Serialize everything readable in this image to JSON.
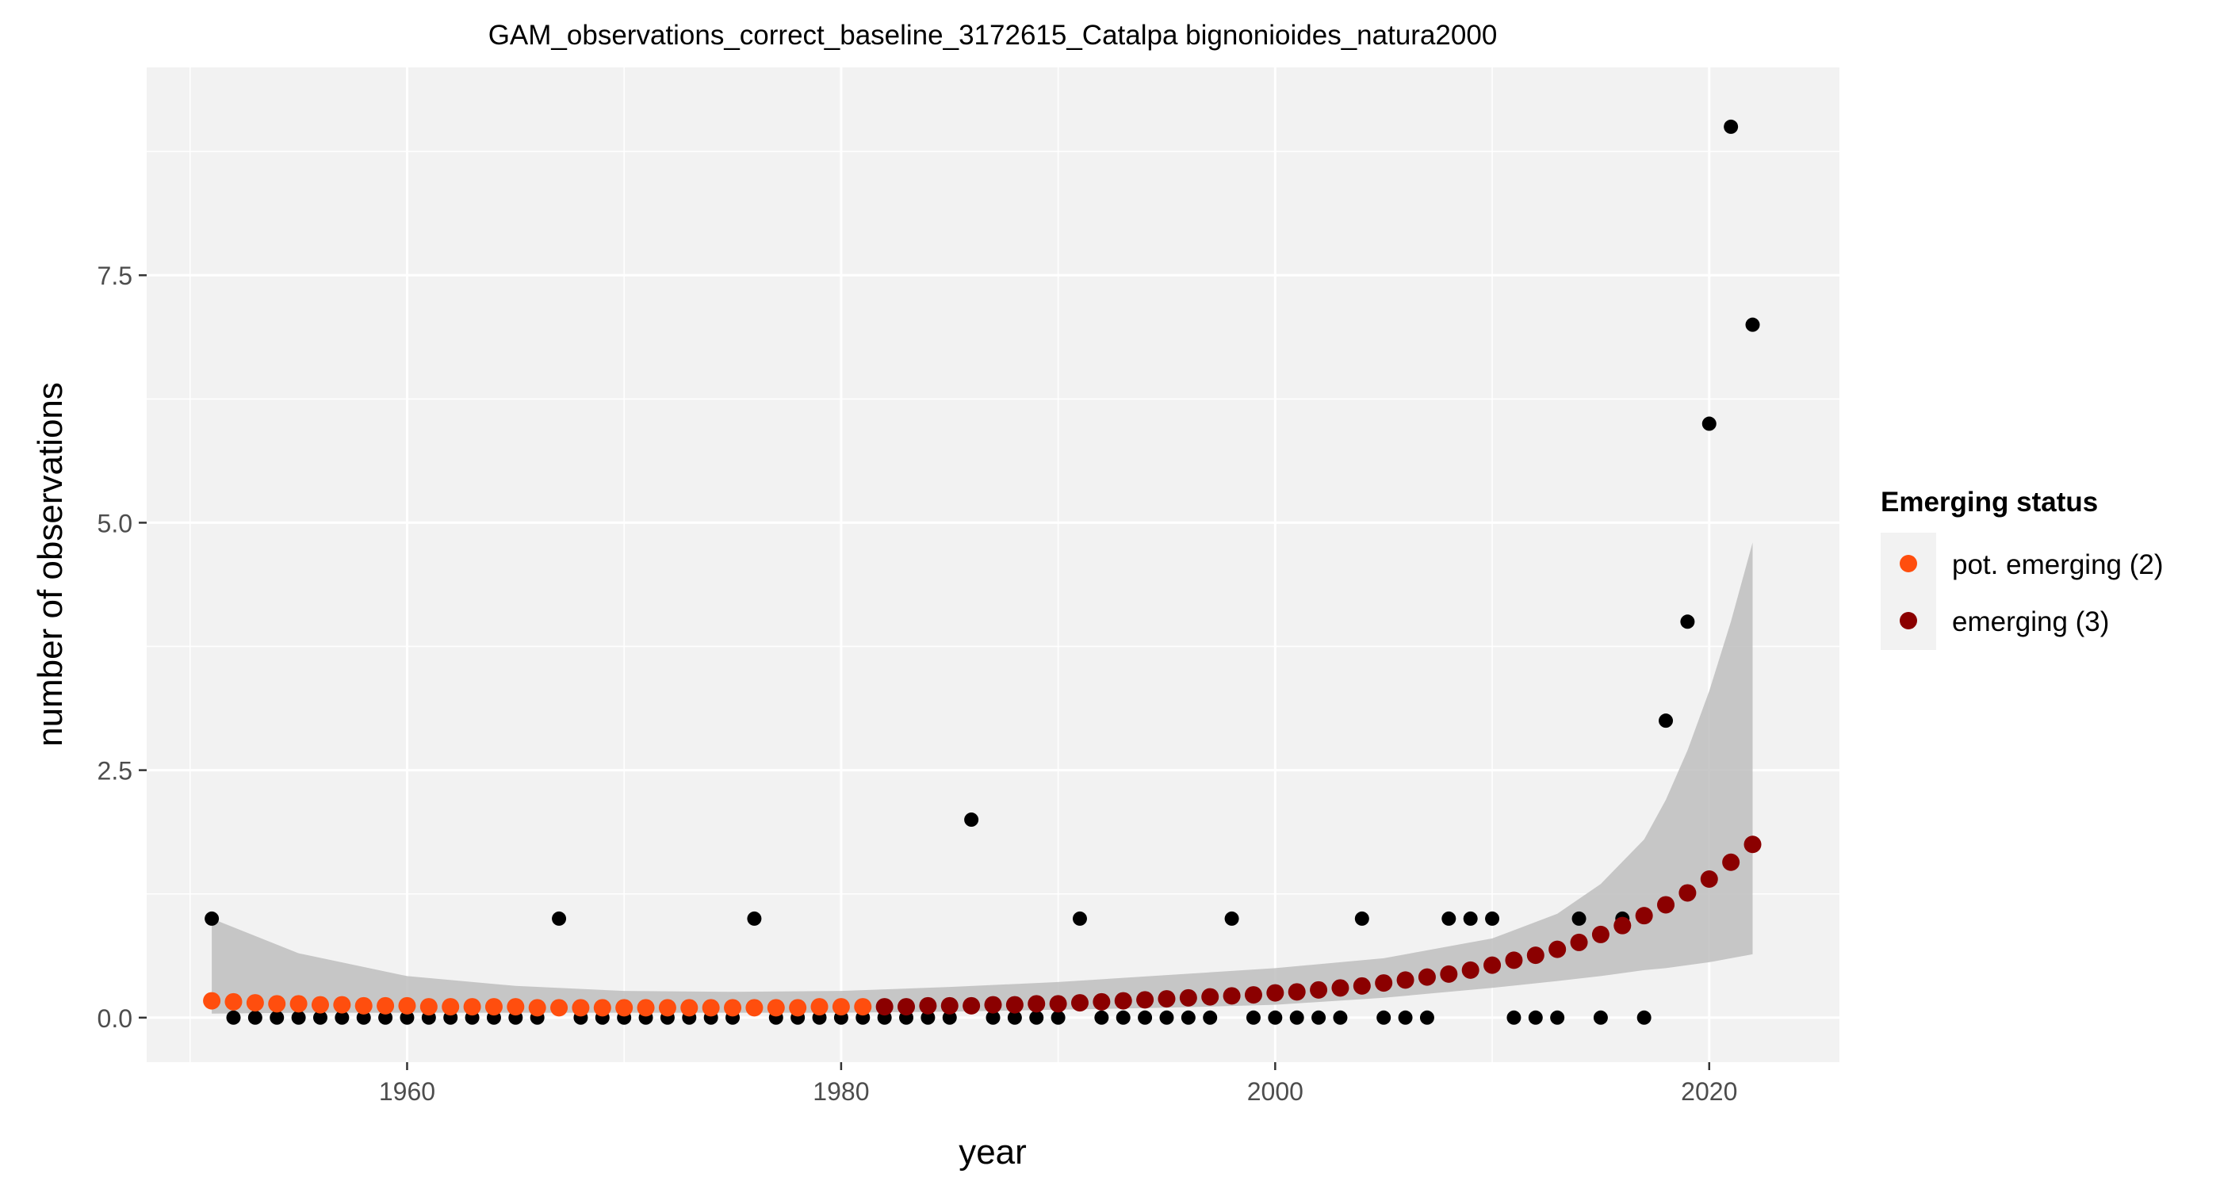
{
  "chart_data": {
    "type": "scatter",
    "title": "GAM_observations_correct_baseline_3172615_Catalpa bignonioides_natura2000",
    "xlabel": "year",
    "ylabel": "number of observations",
    "xlim": [
      1948,
      2026
    ],
    "ylim": [
      -0.45,
      9.6
    ],
    "x_ticks": [
      1960,
      1980,
      2000,
      2020
    ],
    "x_tick_labels": [
      "1960",
      "1980",
      "2000",
      "2020"
    ],
    "y_ticks": [
      0,
      2.5,
      5,
      7.5
    ],
    "y_tick_labels": [
      "0.0",
      "2.5",
      "5.0",
      "7.5"
    ],
    "grid": true,
    "legend": {
      "title": "Emerging status",
      "position": "right",
      "entries": [
        {
          "label": "pot. emerging (2)",
          "color": "#FF4E0E"
        },
        {
          "label": "emerging (3)",
          "color": "#8B0000"
        }
      ]
    },
    "colors": {
      "panel_background": "#F2F2F2",
      "grid": "#FFFFFF",
      "observed": "#000000",
      "ribbon": "#BEBEBE",
      "pot_emerging": "#FF4E0E",
      "emerging": "#8B0000"
    },
    "observed": {
      "years": [
        1951,
        1952,
        1953,
        1954,
        1955,
        1956,
        1957,
        1958,
        1959,
        1960,
        1961,
        1962,
        1963,
        1964,
        1965,
        1966,
        1967,
        1968,
        1969,
        1970,
        1971,
        1972,
        1973,
        1974,
        1975,
        1976,
        1977,
        1978,
        1979,
        1980,
        1981,
        1982,
        1983,
        1984,
        1985,
        1986,
        1987,
        1988,
        1989,
        1990,
        1991,
        1992,
        1993,
        1994,
        1995,
        1996,
        1997,
        1998,
        1999,
        2000,
        2001,
        2002,
        2003,
        2004,
        2005,
        2006,
        2007,
        2008,
        2009,
        2010,
        2011,
        2012,
        2013,
        2014,
        2015,
        2016,
        2017,
        2018,
        2019,
        2020,
        2021,
        2022
      ],
      "values": [
        1,
        0,
        0,
        0,
        0,
        0,
        0,
        0,
        0,
        0,
        0,
        0,
        0,
        0,
        0,
        0,
        1,
        0,
        0,
        0,
        0,
        0,
        0,
        0,
        0,
        1,
        0,
        0,
        0,
        0,
        0,
        0,
        0,
        0,
        0,
        2,
        0,
        0,
        0,
        0,
        1,
        0,
        0,
        0,
        0,
        0,
        0,
        1,
        0,
        0,
        0,
        0,
        0,
        1,
        0,
        0,
        0,
        1,
        1,
        1,
        0,
        0,
        0,
        1,
        0,
        1,
        0,
        3,
        4,
        6,
        9,
        7
      ]
    },
    "fit": {
      "years": [
        1951,
        1952,
        1953,
        1954,
        1955,
        1956,
        1957,
        1958,
        1959,
        1960,
        1961,
        1962,
        1963,
        1964,
        1965,
        1966,
        1967,
        1968,
        1969,
        1970,
        1971,
        1972,
        1973,
        1974,
        1975,
        1976,
        1977,
        1978,
        1979,
        1980,
        1981,
        1982,
        1983,
        1984,
        1985,
        1986,
        1987,
        1988,
        1989,
        1990,
        1991,
        1992,
        1993,
        1994,
        1995,
        1996,
        1997,
        1998,
        1999,
        2000,
        2001,
        2002,
        2003,
        2004,
        2005,
        2006,
        2007,
        2008,
        2009,
        2010,
        2011,
        2012,
        2013,
        2014,
        2015,
        2016,
        2017,
        2018,
        2019,
        2020,
        2021,
        2022
      ],
      "values": [
        0.17,
        0.16,
        0.15,
        0.14,
        0.14,
        0.13,
        0.13,
        0.12,
        0.12,
        0.12,
        0.11,
        0.11,
        0.11,
        0.11,
        0.11,
        0.1,
        0.1,
        0.1,
        0.1,
        0.1,
        0.1,
        0.1,
        0.1,
        0.1,
        0.1,
        0.1,
        0.1,
        0.1,
        0.11,
        0.11,
        0.11,
        0.11,
        0.11,
        0.12,
        0.12,
        0.12,
        0.13,
        0.13,
        0.14,
        0.14,
        0.15,
        0.16,
        0.17,
        0.18,
        0.19,
        0.2,
        0.21,
        0.22,
        0.23,
        0.25,
        0.26,
        0.28,
        0.3,
        0.32,
        0.35,
        0.38,
        0.41,
        0.44,
        0.48,
        0.53,
        0.58,
        0.63,
        0.69,
        0.76,
        0.84,
        0.93,
        1.03,
        1.14,
        1.26,
        1.4,
        1.57,
        1.75
      ],
      "status": [
        "pot. emerging (2)",
        "pot. emerging (2)",
        "pot. emerging (2)",
        "pot. emerging (2)",
        "pot. emerging (2)",
        "pot. emerging (2)",
        "pot. emerging (2)",
        "pot. emerging (2)",
        "pot. emerging (2)",
        "pot. emerging (2)",
        "pot. emerging (2)",
        "pot. emerging (2)",
        "pot. emerging (2)",
        "pot. emerging (2)",
        "pot. emerging (2)",
        "pot. emerging (2)",
        "pot. emerging (2)",
        "pot. emerging (2)",
        "pot. emerging (2)",
        "pot. emerging (2)",
        "pot. emerging (2)",
        "pot. emerging (2)",
        "pot. emerging (2)",
        "pot. emerging (2)",
        "pot. emerging (2)",
        "pot. emerging (2)",
        "pot. emerging (2)",
        "pot. emerging (2)",
        "pot. emerging (2)",
        "pot. emerging (2)",
        "pot. emerging (2)",
        "emerging (3)",
        "emerging (3)",
        "emerging (3)",
        "emerging (3)",
        "emerging (3)",
        "emerging (3)",
        "emerging (3)",
        "emerging (3)",
        "emerging (3)",
        "emerging (3)",
        "emerging (3)",
        "emerging (3)",
        "emerging (3)",
        "emerging (3)",
        "emerging (3)",
        "emerging (3)",
        "emerging (3)",
        "emerging (3)",
        "emerging (3)",
        "emerging (3)",
        "emerging (3)",
        "emerging (3)",
        "emerging (3)",
        "emerging (3)",
        "emerging (3)",
        "emerging (3)",
        "emerging (3)",
        "emerging (3)",
        "emerging (3)",
        "emerging (3)",
        "emerging (3)",
        "emerging (3)",
        "emerging (3)",
        "emerging (3)",
        "emerging (3)",
        "emerging (3)",
        "emerging (3)",
        "emerging (3)",
        "emerging (3)",
        "emerging (3)",
        "emerging (3)"
      ]
    },
    "confidence_band": {
      "years": [
        1951,
        1955,
        1960,
        1965,
        1970,
        1975,
        1980,
        1985,
        1990,
        1995,
        2000,
        2005,
        2010,
        2013,
        2015,
        2017,
        2018,
        2019,
        2020,
        2021,
        2022
      ],
      "lower": [
        0.04,
        0.05,
        0.05,
        0.05,
        0.05,
        0.05,
        0.05,
        0.06,
        0.08,
        0.1,
        0.13,
        0.2,
        0.3,
        0.37,
        0.42,
        0.48,
        0.5,
        0.53,
        0.56,
        0.6,
        0.64
      ],
      "upper": [
        1.0,
        0.65,
        0.42,
        0.32,
        0.27,
        0.26,
        0.27,
        0.31,
        0.36,
        0.43,
        0.5,
        0.6,
        0.8,
        1.05,
        1.35,
        1.8,
        2.2,
        2.7,
        3.3,
        4.0,
        4.8
      ]
    }
  }
}
